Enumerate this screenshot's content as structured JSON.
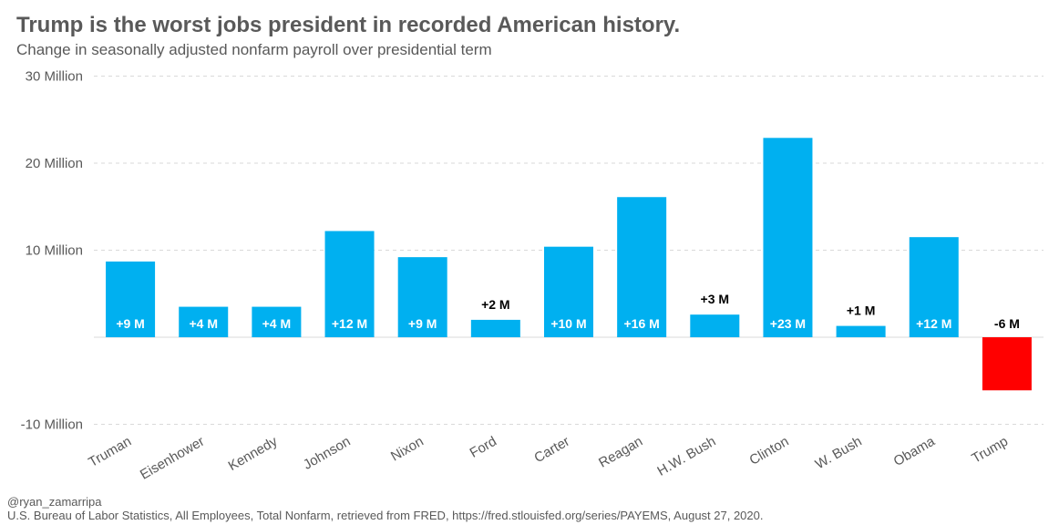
{
  "chart_data": {
    "type": "bar",
    "title": "Trump is the worst jobs president in recorded American history.",
    "subtitle": "Change in seasonally adjusted nonfarm payroll over presidential term",
    "xlabel": "",
    "ylabel": "",
    "ylim": [
      -10,
      30
    ],
    "y_ticks": [
      {
        "value": 30,
        "label": "30 Million"
      },
      {
        "value": 20,
        "label": "20 Million"
      },
      {
        "value": 10,
        "label": "10 Million"
      },
      {
        "value": -10,
        "label": "-10 Million"
      }
    ],
    "grid": true,
    "categories": [
      "Truman",
      "Eisenhower",
      "Kennedy",
      "Johnson",
      "Nixon",
      "Ford",
      "Carter",
      "Reagan",
      "H.W. Bush",
      "Clinton",
      "W. Bush",
      "Obama",
      "Trump"
    ],
    "values": [
      8.7,
      3.5,
      3.5,
      12.2,
      9.2,
      2.0,
      10.4,
      16.1,
      2.6,
      22.9,
      1.3,
      11.5,
      -6.1
    ],
    "data_labels": [
      "+9 M",
      "+4 M",
      "+4 M",
      "+12 M",
      "+9 M",
      "+2 M",
      "+10 M",
      "+16 M",
      "+3 M",
      "+23 M",
      "+1 M",
      "+12 M",
      "-6 M"
    ],
    "colors": {
      "positive": "#00B0F0",
      "negative": "#FF0000",
      "grid": "#D9D9D9",
      "axis_text": "#595959"
    }
  },
  "footer": {
    "handle": "@ryan_zamarripa",
    "source": "U.S. Bureau of Labor Statistics, All Employees, Total Nonfarm, retrieved from FRED, https://fred.stlouisfed.org/series/PAYEMS, August 27, 2020."
  }
}
